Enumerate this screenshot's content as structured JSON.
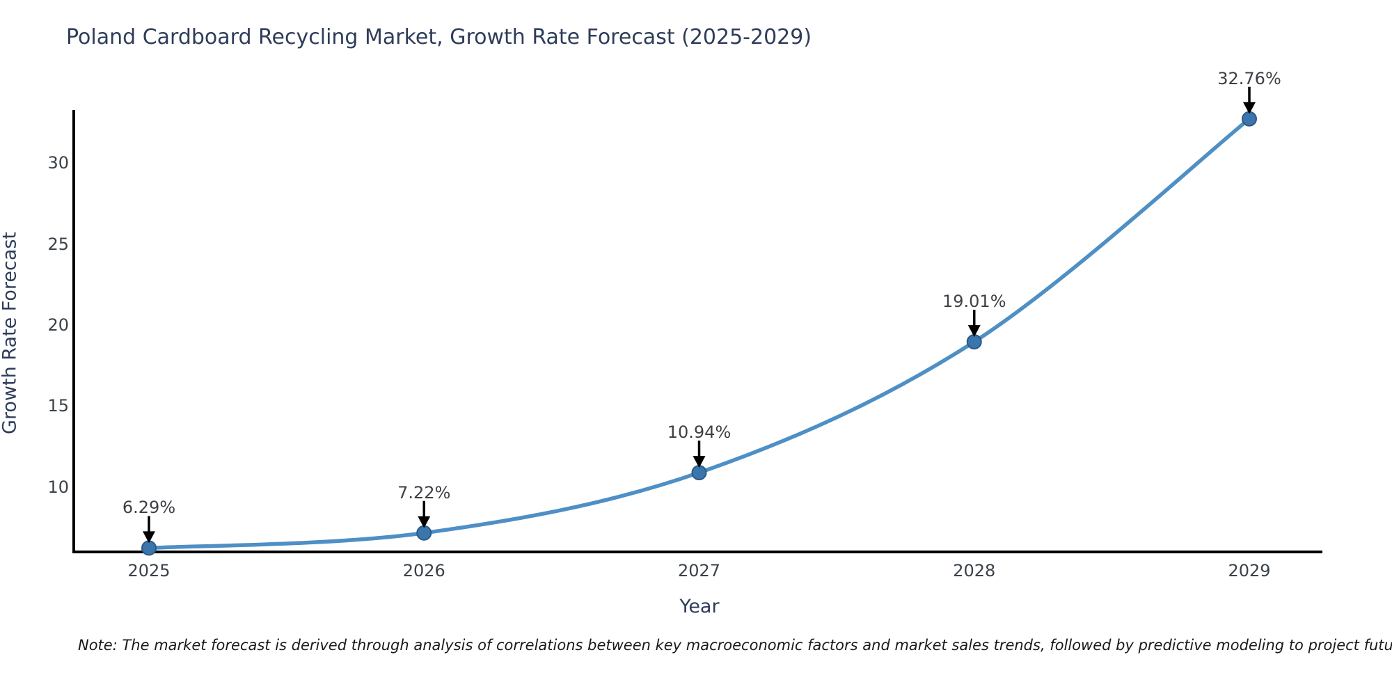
{
  "title": "Poland Cardboard Recycling Market, Growth Rate Forecast (2025-2029)",
  "note": "Note: The market forecast is derived through analysis of correlations between key macroeconomic factors and market sales trends, followed by predictive modeling to project future sales.",
  "chart_data": {
    "type": "line",
    "title": "Poland Cardboard Recycling Market, Growth Rate Forecast (2025-2029)",
    "x": [
      2025,
      2026,
      2027,
      2028,
      2029
    ],
    "series": [
      {
        "name": "Growth Rate Forecast",
        "values": [
          6.29,
          7.22,
          10.94,
          19.01,
          32.76
        ]
      }
    ],
    "point_labels": [
      "6.29%",
      "7.22%",
      "10.94%",
      "19.01%",
      "32.76%"
    ],
    "xlabel": "Year",
    "ylabel": "Growth Rate Forecast",
    "yticks": [
      10,
      15,
      20,
      25,
      30
    ],
    "ylim": [
      6.05,
      33.35
    ],
    "grid": false,
    "legend_position": "none",
    "marker_style": "circle",
    "annotation_style": "value-above-with-down-arrow",
    "colors": {
      "line": "#4e8fc5",
      "marker_fill": "#3a76ad",
      "marker_edge": "#2b5a85",
      "arrow": "#000000",
      "spine": "#000000"
    }
  }
}
